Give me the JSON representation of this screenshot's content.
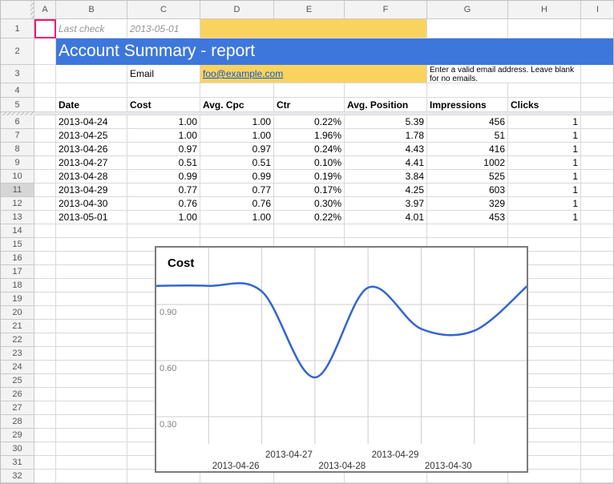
{
  "colors": {
    "banner_bg": "#3d77db",
    "highlight_yellow": "#fad35f",
    "link_blue": "#1155cc",
    "selection_pink": "#ee1876",
    "chart_line_blue": "#3366cc"
  },
  "grid": {
    "columns": [
      "A",
      "B",
      "C",
      "D",
      "E",
      "F",
      "G",
      "H",
      "I"
    ],
    "first_row": 1,
    "last_row": 32,
    "selected_cell": "A1",
    "highlighted_row_header": 11
  },
  "top": {
    "last_check_label": "Last check",
    "last_check_value": "2013-05-01",
    "banner_title": "Account Summary - report",
    "email_label": "Email",
    "email_value": "foo@example.com",
    "email_note": "Enter a valid email address. Leave blank for no emails."
  },
  "table": {
    "headers": [
      "Date",
      "Cost",
      "Avg. Cpc",
      "Ctr",
      "Avg. Position",
      "Impressions",
      "Clicks"
    ],
    "rows": [
      [
        "2013-04-24",
        "1.00",
        "1.00",
        "0.22%",
        "5.39",
        "456",
        "1"
      ],
      [
        "2013-04-25",
        "1.00",
        "1.00",
        "1.96%",
        "1.78",
        "51",
        "1"
      ],
      [
        "2013-04-26",
        "0.97",
        "0.97",
        "0.24%",
        "4.43",
        "416",
        "1"
      ],
      [
        "2013-04-27",
        "0.51",
        "0.51",
        "0.10%",
        "4.41",
        "1002",
        "1"
      ],
      [
        "2013-04-28",
        "0.99",
        "0.99",
        "0.19%",
        "3.84",
        "525",
        "1"
      ],
      [
        "2013-04-29",
        "0.77",
        "0.77",
        "0.17%",
        "4.25",
        "603",
        "1"
      ],
      [
        "2013-04-30",
        "0.76",
        "0.76",
        "0.30%",
        "3.97",
        "329",
        "1"
      ],
      [
        "2013-05-01",
        "1.00",
        "1.00",
        "0.22%",
        "4.01",
        "453",
        "1"
      ]
    ]
  },
  "chart_data": {
    "type": "line",
    "title": "Cost",
    "smooth": true,
    "legend": "none",
    "grid": true,
    "line_color": "#3366cc",
    "x": [
      "2013-04-24",
      "2013-04-25",
      "2013-04-26",
      "2013-04-27",
      "2013-04-28",
      "2013-04-29",
      "2013-04-30",
      "2013-05-01"
    ],
    "values": [
      1.0,
      1.0,
      0.97,
      0.51,
      0.99,
      0.77,
      0.76,
      1.0
    ],
    "ylabel": "",
    "xlabel": "",
    "ylim": [
      0.15,
      1.2
    ],
    "ytick_values": [
      0.9,
      0.6,
      0.3
    ],
    "ytick_labels": [
      "0.90",
      "0.60",
      "0.30"
    ],
    "xtick_labels_lower": [
      "2013-04-26",
      "2013-04-28",
      "2013-04-30"
    ],
    "xtick_labels_upper": [
      "2013-04-27",
      "2013-04-29"
    ]
  }
}
